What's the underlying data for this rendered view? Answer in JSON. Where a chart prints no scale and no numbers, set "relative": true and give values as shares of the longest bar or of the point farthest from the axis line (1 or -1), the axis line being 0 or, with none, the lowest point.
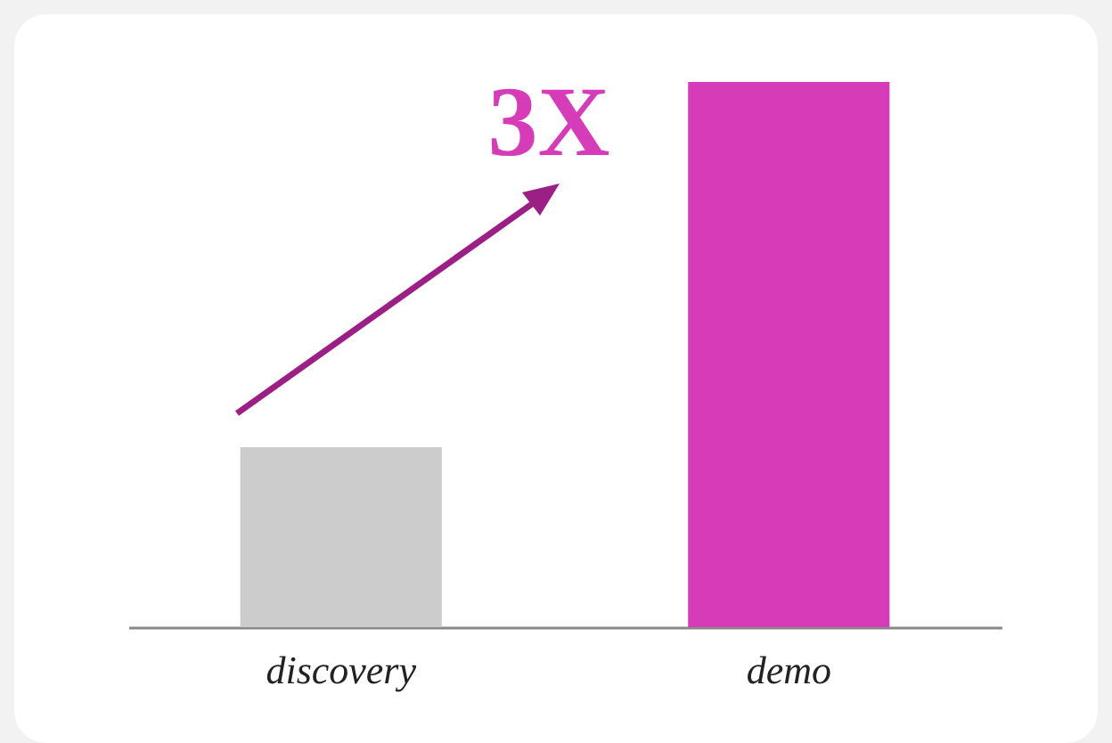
{
  "chart_data": {
    "type": "bar",
    "relative": true,
    "categories": [
      "discovery",
      "demo"
    ],
    "values": [
      0.33,
      1
    ],
    "colors": [
      "#cccccc",
      "#d63cb8"
    ],
    "annotations": [
      "3X"
    ]
  }
}
